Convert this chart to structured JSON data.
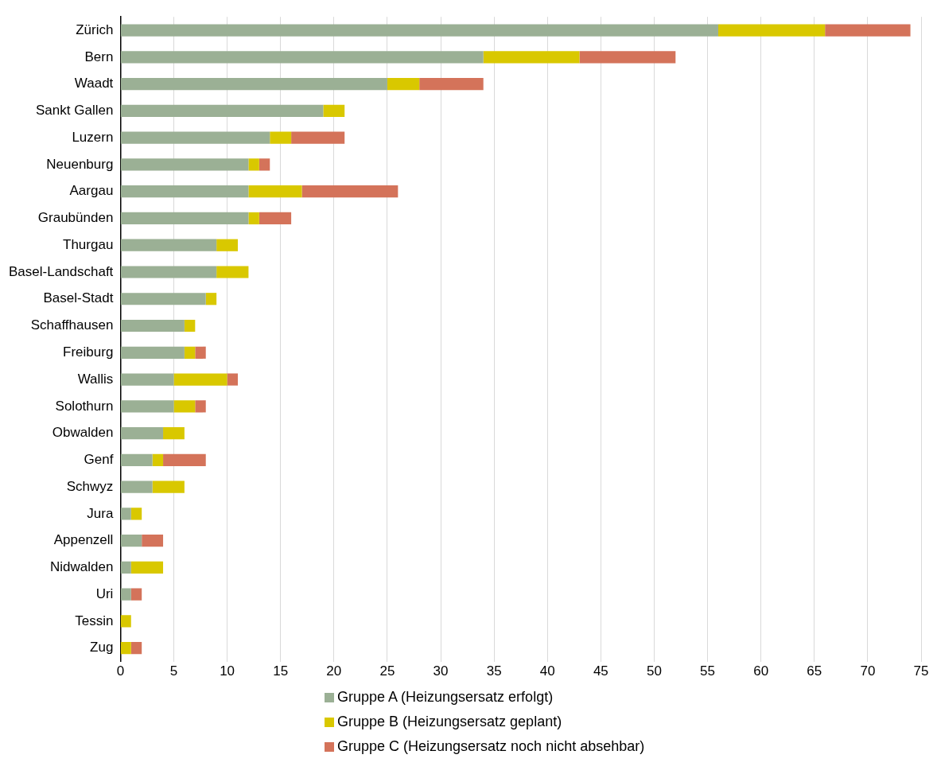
{
  "chart_data": {
    "type": "bar",
    "orientation": "horizontal",
    "stacked": true,
    "grid": "x",
    "legend": "bottom",
    "categories": [
      "Zürich",
      "Bern",
      "Waadt",
      "Sankt Gallen",
      "Luzern",
      "Neuenburg",
      "Aargau",
      "Graubünden",
      "Thurgau",
      "Basel-Landschaft",
      "Basel-Stadt",
      "Schaffhausen",
      "Freiburg",
      "Wallis",
      "Solothurn",
      "Obwalden",
      "Genf",
      "Schwyz",
      "Jura",
      "Appenzell",
      "Nidwalden",
      "Uri",
      "Tessin",
      "Zug"
    ],
    "xlim": [
      0,
      75
    ],
    "xticks": [
      0,
      5,
      10,
      15,
      20,
      25,
      30,
      35,
      40,
      45,
      50,
      55,
      60,
      65,
      70,
      75
    ],
    "series": [
      {
        "name": "Gruppe A (Heizungsersatz erfolgt)",
        "color": "#9bb095",
        "values": [
          56,
          34,
          25,
          19,
          14,
          12,
          12,
          12,
          9,
          9,
          8,
          6,
          6,
          5,
          5,
          4,
          3,
          3,
          1,
          2,
          1,
          1,
          0,
          0
        ]
      },
      {
        "name": "Gruppe B (Heizungsersatz geplant)",
        "color": "#d9c800",
        "values": [
          10,
          9,
          3,
          2,
          2,
          1,
          5,
          1,
          2,
          3,
          1,
          1,
          1,
          5,
          2,
          2,
          1,
          3,
          1,
          0,
          3,
          0,
          1,
          1
        ]
      },
      {
        "name": "Gruppe C (Heizungsersatz noch nicht absehbar)",
        "color": "#d4735a",
        "values": [
          8,
          9,
          6,
          0,
          5,
          1,
          9,
          3,
          0,
          0,
          0,
          0,
          1,
          1,
          1,
          0,
          4,
          0,
          0,
          2,
          0,
          1,
          0,
          1
        ]
      }
    ]
  }
}
